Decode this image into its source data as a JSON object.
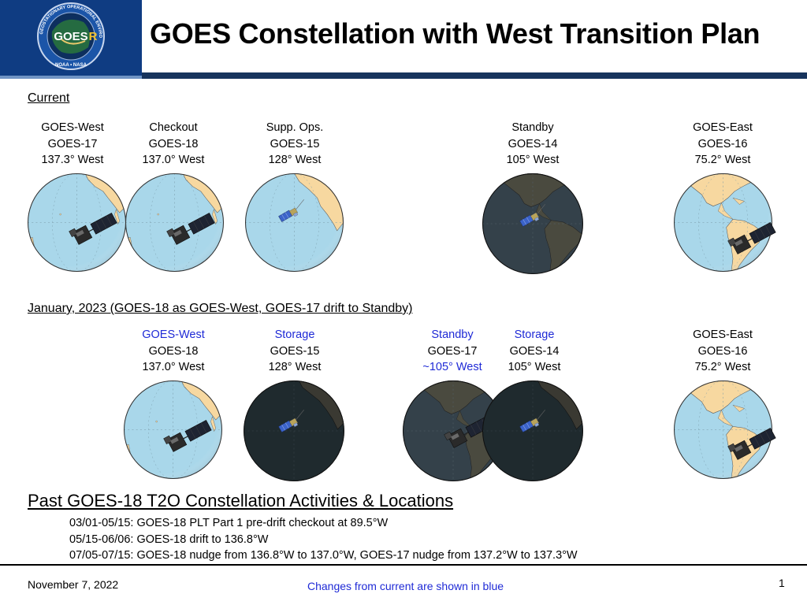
{
  "header": {
    "logo": {
      "name": "goes-r-series-logo",
      "ring_text": "GEOSTATIONARY OPERATIONAL ENVIRONMENTAL SATELLITE R SERIES",
      "center_text": "GOES-R",
      "bottom_text": "NOAA • NASA"
    },
    "title": "GOES Constellation with West Transition Plan"
  },
  "current": {
    "label": "Current",
    "satellites": [
      {
        "lines": [
          "GOES-West",
          "GOES-17",
          "137.3° West"
        ],
        "globe": "pacific-west",
        "sat": "goes-r"
      },
      {
        "lines": [
          "Checkout",
          "GOES-18",
          "137.0° West"
        ],
        "globe": "pacific-west",
        "sat": "goes-r"
      },
      {
        "lines": [
          "Supp. Ops.",
          "GOES-15",
          "128° West"
        ],
        "globe": "pacific-mid",
        "sat": "goes-np"
      },
      {
        "lines": [
          "Standby",
          "GOES-14",
          "105° West"
        ],
        "globe": "americas-dark",
        "sat": "goes-np"
      },
      {
        "lines": [
          "GOES-East",
          "GOES-16",
          "75.2° West"
        ],
        "globe": "americas",
        "sat": "goes-r"
      }
    ]
  },
  "january": {
    "label": "January, 2023 (GOES-18 as GOES-West, GOES-17 drift to Standby)",
    "satellites": [
      {
        "lines": [
          "GOES-West",
          "GOES-18",
          "137.0° West"
        ],
        "blue": [
          0
        ],
        "globe": "pacific-west",
        "sat": "goes-r"
      },
      {
        "lines": [
          "Storage",
          "GOES-15",
          "128° West"
        ],
        "blue": [
          0
        ],
        "globe": "pacific-dark",
        "sat": "goes-np"
      },
      {
        "lines": [
          "Standby",
          "GOES-17",
          "~105° West"
        ],
        "blue": [
          0,
          2
        ],
        "globe": "americas-dark",
        "sat": "goes-r"
      },
      {
        "lines": [
          "Storage",
          "GOES-14",
          "105° West"
        ],
        "blue": [
          0
        ],
        "globe": "pacific-dark",
        "sat": "goes-np"
      },
      {
        "lines": [
          "GOES-East",
          "GOES-16",
          "75.2° West"
        ],
        "blue": [],
        "globe": "americas",
        "sat": "goes-r"
      }
    ]
  },
  "past": {
    "title": "Past GOES-18 T2O Constellation Activities & Locations",
    "items": [
      "03/01-05/15:  GOES-18 PLT Part 1 pre-drift checkout at 89.5°W",
      "05/15-06/06:  GOES-18 drift to 136.8°W",
      "07/05-07/15:  GOES-18 nudge from 136.8°W to 137.0°W, GOES-17 nudge from 137.2°W to 137.3°W"
    ]
  },
  "footer": {
    "date": "November 7, 2022",
    "note": "Changes from current are shown in blue",
    "page": "1"
  },
  "colors": {
    "header_dark": "#17345d",
    "header_light": "#6f93c4",
    "changed_text": "#1f2ad6",
    "ocean": "#a9d7ea",
    "land": "#f7d8a0",
    "night_ocean": "#34414a",
    "night_land": "#4a4a3f"
  }
}
